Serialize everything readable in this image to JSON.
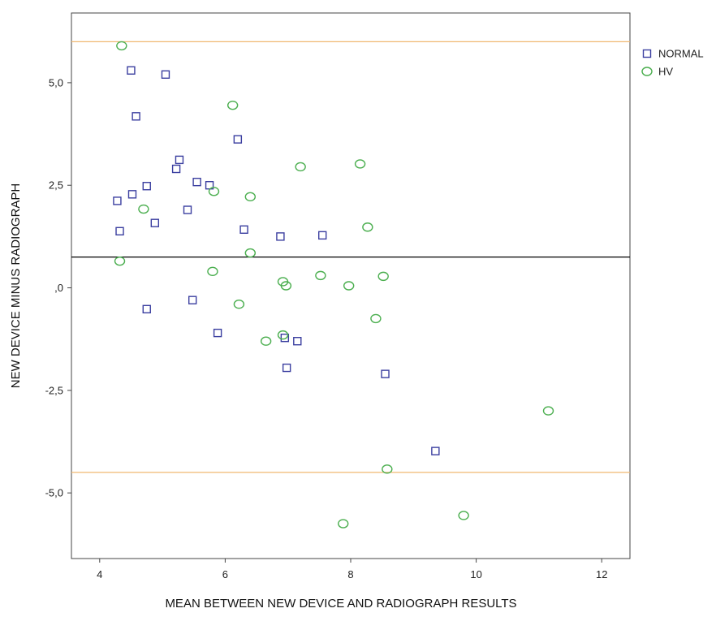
{
  "chart_data": {
    "type": "scatter",
    "title": "",
    "xlabel": "MEAN BETWEEN NEW DEVICE AND RADIOGRAPH RESULTS",
    "ylabel": "NEW DEVICE MINUS RADIOGRAPH",
    "xlim": [
      3.55,
      12.45
    ],
    "ylim": [
      -6.6,
      6.7
    ],
    "x_ticks": [
      4,
      6,
      8,
      10,
      12
    ],
    "x_tick_labels": [
      "4",
      "6",
      "8",
      "10",
      "12"
    ],
    "y_ticks": [
      5,
      2.5,
      0,
      -2.5,
      -5
    ],
    "y_tick_labels": [
      "5,0",
      "2,5",
      ",0",
      "-2,5",
      "-5,0"
    ],
    "grid": false,
    "legend_position": "top-right",
    "reference_lines": {
      "mean": 0.75,
      "upper_limit": 6.0,
      "lower_limit": -4.5,
      "mean_color": "#000000",
      "limit_color": "#f0b870"
    },
    "series": [
      {
        "name": "NORMAL",
        "marker": "square",
        "color": "#3b3fa0",
        "points": [
          [
            4.5,
            5.3
          ],
          [
            5.05,
            5.2
          ],
          [
            4.58,
            4.18
          ],
          [
            6.2,
            3.62
          ],
          [
            5.27,
            3.12
          ],
          [
            5.22,
            2.9
          ],
          [
            5.55,
            2.58
          ],
          [
            5.75,
            2.5
          ],
          [
            4.75,
            2.48
          ],
          [
            4.52,
            2.28
          ],
          [
            4.28,
            2.12
          ],
          [
            5.4,
            1.9
          ],
          [
            4.88,
            1.58
          ],
          [
            6.3,
            1.42
          ],
          [
            4.32,
            1.38
          ],
          [
            7.55,
            1.28
          ],
          [
            6.88,
            1.25
          ],
          [
            4.75,
            -0.52
          ],
          [
            5.48,
            -0.3
          ],
          [
            5.88,
            -1.1
          ],
          [
            6.95,
            -1.22
          ],
          [
            7.15,
            -1.3
          ],
          [
            6.98,
            -1.95
          ],
          [
            8.55,
            -2.1
          ],
          [
            9.35,
            -3.98
          ]
        ]
      },
      {
        "name": "HV",
        "marker": "circle",
        "color": "#4caf50",
        "points": [
          [
            4.35,
            5.9
          ],
          [
            6.12,
            4.45
          ],
          [
            7.2,
            2.95
          ],
          [
            8.15,
            3.02
          ],
          [
            5.82,
            2.35
          ],
          [
            6.4,
            2.22
          ],
          [
            4.7,
            1.92
          ],
          [
            8.27,
            1.48
          ],
          [
            6.4,
            0.85
          ],
          [
            4.32,
            0.65
          ],
          [
            5.8,
            0.4
          ],
          [
            7.52,
            0.3
          ],
          [
            8.52,
            0.28
          ],
          [
            6.92,
            0.15
          ],
          [
            6.97,
            0.05
          ],
          [
            7.97,
            0.05
          ],
          [
            6.22,
            -0.4
          ],
          [
            8.4,
            -0.75
          ],
          [
            6.92,
            -1.15
          ],
          [
            6.65,
            -1.3
          ],
          [
            11.15,
            -3.0
          ],
          [
            8.58,
            -4.42
          ],
          [
            9.8,
            -5.55
          ],
          [
            7.88,
            -5.75
          ]
        ]
      }
    ]
  }
}
